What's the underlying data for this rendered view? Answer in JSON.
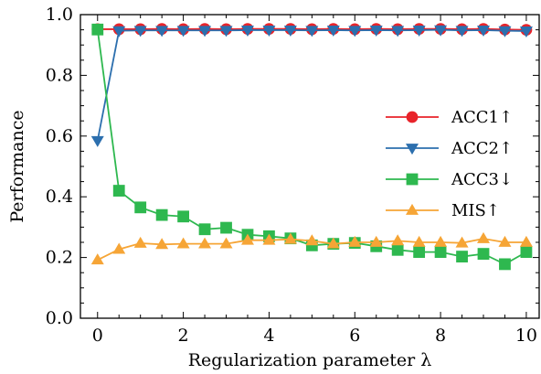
{
  "chart_data": {
    "type": "line",
    "title": "",
    "xlabel": "Regularization parameter λ",
    "ylabel": "Performance",
    "xlim": [
      -0.4,
      10.3
    ],
    "ylim": [
      0.0,
      1.0
    ],
    "xticks": [
      0,
      2,
      4,
      6,
      8,
      10
    ],
    "yticks": [
      0.0,
      0.2,
      0.4,
      0.6,
      0.8,
      1.0
    ],
    "xtick_labels": [
      "0",
      "2",
      "4",
      "6",
      "8",
      "10"
    ],
    "ytick_labels": [
      "0.0",
      "0.2",
      "0.4",
      "0.6",
      "0.8",
      "1.0"
    ],
    "grid": false,
    "legend_position": "center-right",
    "x": [
      0,
      0.5,
      1,
      1.5,
      2,
      2.5,
      3,
      3.5,
      4,
      4.5,
      5,
      5.5,
      6,
      6.5,
      7,
      7.5,
      8,
      8.5,
      9,
      9.5,
      10
    ],
    "series": [
      {
        "name": "ACC1↑",
        "color": "#e8232a",
        "marker": "circle",
        "values": [
          0.952,
          0.952,
          0.952,
          0.953,
          0.952,
          0.953,
          0.952,
          0.953,
          0.953,
          0.953,
          0.952,
          0.953,
          0.952,
          0.953,
          0.952,
          0.953,
          0.953,
          0.952,
          0.953,
          0.951,
          0.95
        ]
      },
      {
        "name": "ACC2↑",
        "color": "#2c6fae",
        "marker": "triangle-down",
        "values": [
          0.585,
          0.947,
          0.948,
          0.948,
          0.948,
          0.948,
          0.948,
          0.949,
          0.949,
          0.949,
          0.948,
          0.949,
          0.948,
          0.949,
          0.948,
          0.949,
          0.95,
          0.948,
          0.949,
          0.947,
          0.946
        ]
      },
      {
        "name": "ACC3↓",
        "color": "#2eb84f",
        "marker": "square",
        "values": [
          0.951,
          0.42,
          0.365,
          0.34,
          0.335,
          0.293,
          0.298,
          0.275,
          0.27,
          0.263,
          0.24,
          0.245,
          0.248,
          0.237,
          0.225,
          0.218,
          0.218,
          0.203,
          0.212,
          0.178,
          0.218
        ]
      },
      {
        "name": "MIS↑",
        "color": "#f6a536",
        "marker": "triangle-up",
        "values": [
          0.192,
          0.227,
          0.247,
          0.243,
          0.245,
          0.245,
          0.245,
          0.257,
          0.257,
          0.26,
          0.255,
          0.245,
          0.25,
          0.25,
          0.255,
          0.25,
          0.25,
          0.248,
          0.262,
          0.25,
          0.25
        ]
      }
    ]
  }
}
